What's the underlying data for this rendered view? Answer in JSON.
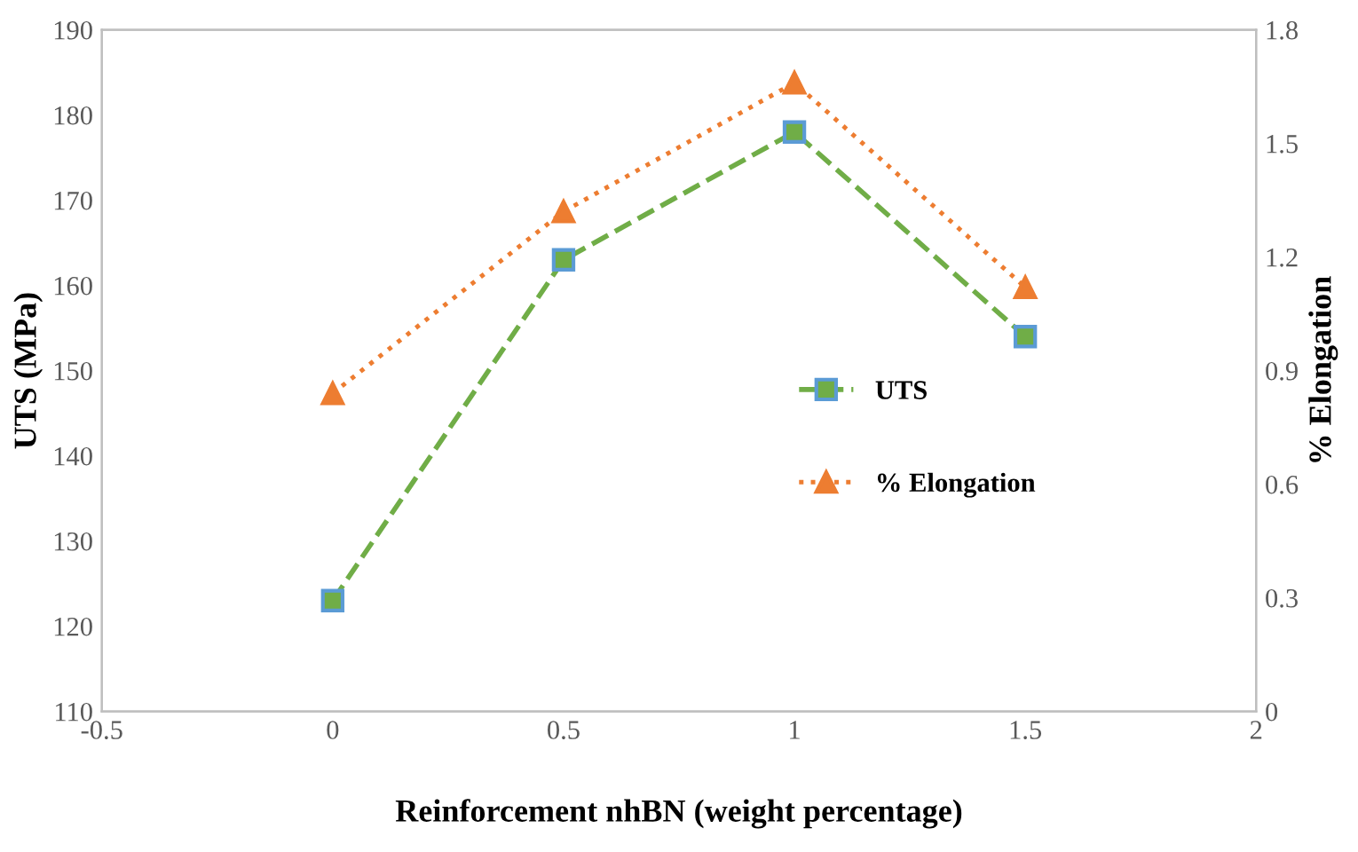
{
  "chart_data": {
    "type": "line",
    "xlabel": "Reinforcement nhBN (weight percentage)",
    "ylabel": "UTS (MPa)",
    "y2label": "% Elongation",
    "x": [
      0,
      0.5,
      1,
      1.5
    ],
    "series": [
      {
        "name": "UTS",
        "color": "#70ad47",
        "values": [
          123,
          163,
          178,
          154
        ],
        "marker": "square",
        "line_style": "dashed"
      },
      {
        "name": "% Elongation",
        "color": "#ed7d31",
        "values": [
          0.84,
          1.32,
          1.66,
          1.12
        ],
        "axis": "y2",
        "marker": "triangle",
        "line_style": "dotted"
      }
    ],
    "xlim": [
      -0.5,
      2
    ],
    "xticks": [
      -0.5,
      0,
      0.5,
      1,
      1.5,
      2
    ],
    "ylim": [
      110,
      190
    ],
    "yticks": [
      110,
      120,
      130,
      140,
      150,
      160,
      170,
      180,
      190
    ],
    "y2lim": [
      0,
      1.8
    ],
    "y2ticks": [
      0,
      0.3,
      0.6,
      0.9,
      1.2,
      1.5,
      1.8
    ],
    "grid": false,
    "legend": "right"
  }
}
